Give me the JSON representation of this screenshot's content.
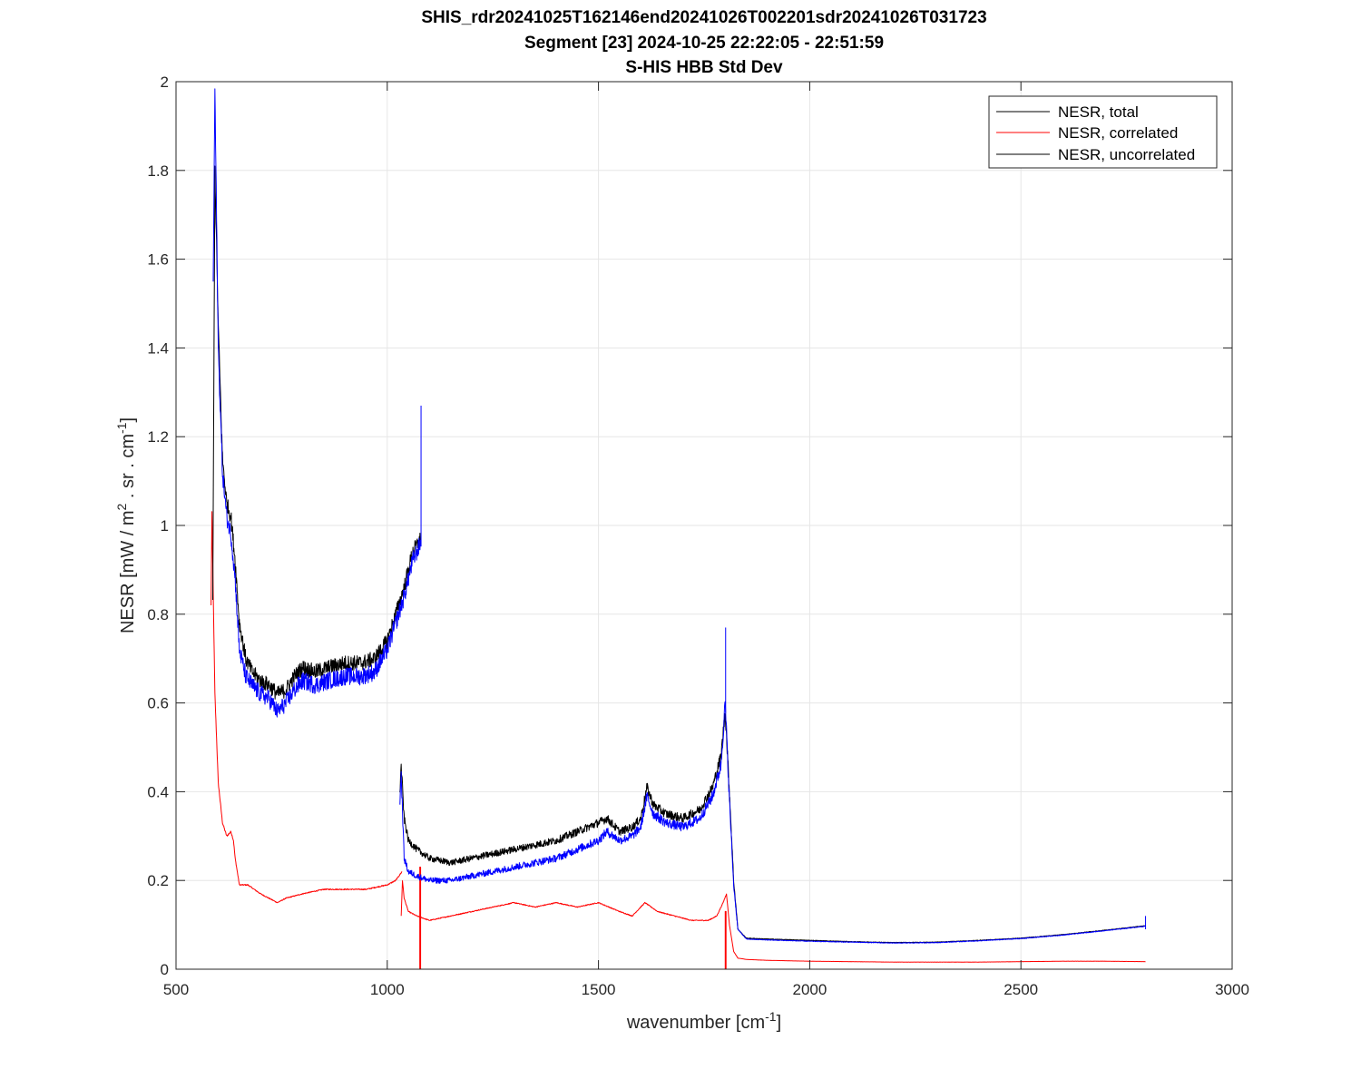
{
  "chart_data": {
    "type": "line",
    "title_lines": [
      "SHIS_rdr20241025T162146end20241026T002201sdr20241026T031723",
      "Segment [23] 2024-10-25 22:22:05 - 22:51:59",
      "S-HIS HBB Std Dev"
    ],
    "xlabel": {
      "base": "wavenumber [cm",
      "sup": "-1",
      "tail": "]"
    },
    "ylabel": {
      "p1": "NESR [mW / m",
      "sup1": "2",
      "p2": " . sr . cm",
      "sup2": "-1",
      "p3": "]"
    },
    "xlim": [
      500,
      3000
    ],
    "ylim": [
      0,
      2
    ],
    "xticks": [
      500,
      1000,
      1500,
      2000,
      2500,
      3000
    ],
    "yticks": [
      0,
      0.2,
      0.4,
      0.6,
      0.8,
      1,
      1.2,
      1.4,
      1.6,
      1.8,
      2
    ],
    "ytick_labels": [
      "0",
      "0.2",
      "0.4",
      "0.6",
      "0.8",
      "1",
      "1.2",
      "1.4",
      "1.6",
      "1.8",
      "2"
    ],
    "grid": true,
    "legend_position": "top-right",
    "series": [
      {
        "name": "NESR, total",
        "color": "#000000",
        "noise": 0.035,
        "segments": [
          {
            "x": [
              587,
              592,
              600,
              610,
              620,
              630,
              640,
              650,
              665,
              680,
              700,
              720,
              740,
              760,
              780,
              800,
              830,
              860,
              900,
              940,
              970,
              1000,
              1020,
              1040,
              1060,
              1079
            ],
            "y": [
              0.82,
              1.8,
              1.45,
              1.15,
              1.05,
              1.02,
              0.92,
              0.78,
              0.7,
              0.67,
              0.65,
              0.64,
              0.62,
              0.63,
              0.66,
              0.68,
              0.67,
              0.68,
              0.69,
              0.69,
              0.7,
              0.74,
              0.8,
              0.86,
              0.94,
              0.97
            ]
          },
          {
            "x": [
              1030,
              1033,
              1040,
              1050,
              1070,
              1100,
              1150,
              1200,
              1250,
              1300,
              1350,
              1400,
              1450,
              1500,
              1520,
              1550,
              1580,
              1600,
              1615,
              1630,
              1660,
              1700,
              1740,
              1770,
              1790,
              1800,
              1810,
              1820,
              1830,
              1850,
              1900,
              2000,
              2100,
              2200,
              2300,
              2400,
              2500,
              2600,
              2700,
              2795
            ],
            "y": [
              0.4,
              0.46,
              0.34,
              0.29,
              0.27,
              0.25,
              0.24,
              0.25,
              0.26,
              0.27,
              0.28,
              0.29,
              0.31,
              0.33,
              0.34,
              0.31,
              0.32,
              0.34,
              0.41,
              0.37,
              0.35,
              0.34,
              0.36,
              0.41,
              0.48,
              0.58,
              0.4,
              0.2,
              0.09,
              0.07,
              0.068,
              0.065,
              0.062,
              0.06,
              0.061,
              0.065,
              0.07,
              0.078,
              0.088,
              0.098
            ]
          }
        ]
      },
      {
        "name": "NESR, correlated",
        "color": "#ff0000",
        "noise": 0.008,
        "segments": [
          {
            "x": [
              583,
              585,
              588,
              592,
              600,
              610,
              620,
              630,
              636,
              640,
              650,
              670,
              700,
              740,
              760,
              800,
              850,
              900,
              950,
              1000,
              1020,
              1035
            ],
            "y": [
              0.82,
              1.03,
              0.85,
              0.62,
              0.42,
              0.33,
              0.3,
              0.31,
              0.29,
              0.25,
              0.19,
              0.19,
              0.17,
              0.15,
              0.16,
              0.17,
              0.18,
              0.18,
              0.18,
              0.19,
              0.2,
              0.22
            ]
          },
          {
            "x": [
              1033,
              1036,
              1040,
              1050,
              1070,
              1100,
              1150,
              1200,
              1250,
              1300,
              1350,
              1400,
              1450,
              1500,
              1550,
              1580,
              1610,
              1640,
              1680,
              1720,
              1760,
              1780,
              1795,
              1803,
              1810,
              1820,
              1830,
              1850,
              1900,
              2000,
              2100,
              2200,
              2300,
              2400,
              2500,
              2600,
              2700,
              2795
            ],
            "y": [
              0.12,
              0.2,
              0.16,
              0.13,
              0.12,
              0.11,
              0.12,
              0.13,
              0.14,
              0.15,
              0.14,
              0.15,
              0.14,
              0.15,
              0.13,
              0.12,
              0.15,
              0.13,
              0.12,
              0.11,
              0.11,
              0.12,
              0.15,
              0.17,
              0.1,
              0.04,
              0.025,
              0.022,
              0.02,
              0.018,
              0.017,
              0.016,
              0.016,
              0.016,
              0.017,
              0.018,
              0.018,
              0.017
            ]
          },
          {
            "x": [
              1077,
              1077,
              1079,
              1079
            ],
            "y": [
              0.0,
              0.23,
              0.23,
              0.0
            ]
          },
          {
            "x": [
              1800,
              1800,
              1802,
              1802
            ],
            "y": [
              0.0,
              0.13,
              0.13,
              0.0
            ]
          }
        ]
      },
      {
        "name": "NESR, uncorrelated",
        "color": "#0000ff",
        "noise": 0.04,
        "segments": [
          {
            "x": [
              588,
              592,
              600,
              610,
              620,
              630,
              640,
              650,
              665,
              680,
              700,
              720,
              740,
              760,
              780,
              800,
              830,
              860,
              900,
              940,
              970,
              1000,
              1020,
              1040,
              1060,
              1079
            ],
            "y": [
              1.55,
              1.98,
              1.4,
              1.12,
              1.02,
              0.98,
              0.88,
              0.72,
              0.66,
              0.64,
              0.62,
              0.61,
              0.58,
              0.6,
              0.63,
              0.65,
              0.64,
              0.65,
              0.66,
              0.66,
              0.67,
              0.72,
              0.78,
              0.84,
              0.92,
              0.96
            ]
          },
          {
            "x": [
              1030,
              1033,
              1040,
              1050,
              1070,
              1100,
              1150,
              1200,
              1250,
              1300,
              1350,
              1400,
              1450,
              1500,
              1520,
              1550,
              1580,
              1600,
              1615,
              1630,
              1660,
              1700,
              1740,
              1770,
              1790,
              1800,
              1810,
              1820,
              1830,
              1850,
              1900,
              2000,
              2100,
              2200,
              2300,
              2400,
              2500,
              2600,
              2700,
              2795
            ],
            "y": [
              0.38,
              0.44,
              0.25,
              0.22,
              0.21,
              0.2,
              0.2,
              0.21,
              0.22,
              0.23,
              0.24,
              0.25,
              0.27,
              0.29,
              0.31,
              0.29,
              0.3,
              0.32,
              0.39,
              0.35,
              0.33,
              0.32,
              0.34,
              0.39,
              0.46,
              0.6,
              0.38,
              0.19,
              0.09,
              0.068,
              0.066,
              0.063,
              0.061,
              0.059,
              0.06,
              0.064,
              0.069,
              0.077,
              0.087,
              0.097
            ]
          }
        ],
        "spikes": [
          {
            "x": 1080,
            "y": 1.27
          },
          {
            "x": 1801,
            "y": 0.77
          },
          {
            "x": 2795,
            "y": 0.12
          }
        ]
      }
    ]
  }
}
